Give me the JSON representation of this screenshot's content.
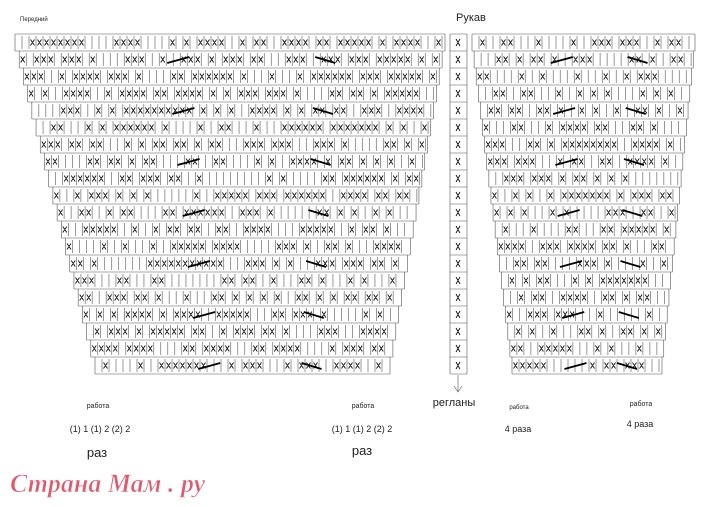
{
  "header": {
    "front_label": "Передний",
    "sleeve_label": "Рукав"
  },
  "labels": {
    "front_left": {
      "work": "работа",
      "sequence": "(1) 1 (1) 2 (2) 2",
      "times": "раз"
    },
    "front_right": {
      "work": "работа",
      "sequence": "(1) 1 (1) 2 (2) 2",
      "times": "раз"
    },
    "raglan": "регланы",
    "sleeve_left": {
      "work": "работа",
      "times": "4 раза"
    },
    "sleeve_right": {
      "work": "работа",
      "times": "4 раза"
    }
  },
  "watermark": "Страна Мам . ру"
}
